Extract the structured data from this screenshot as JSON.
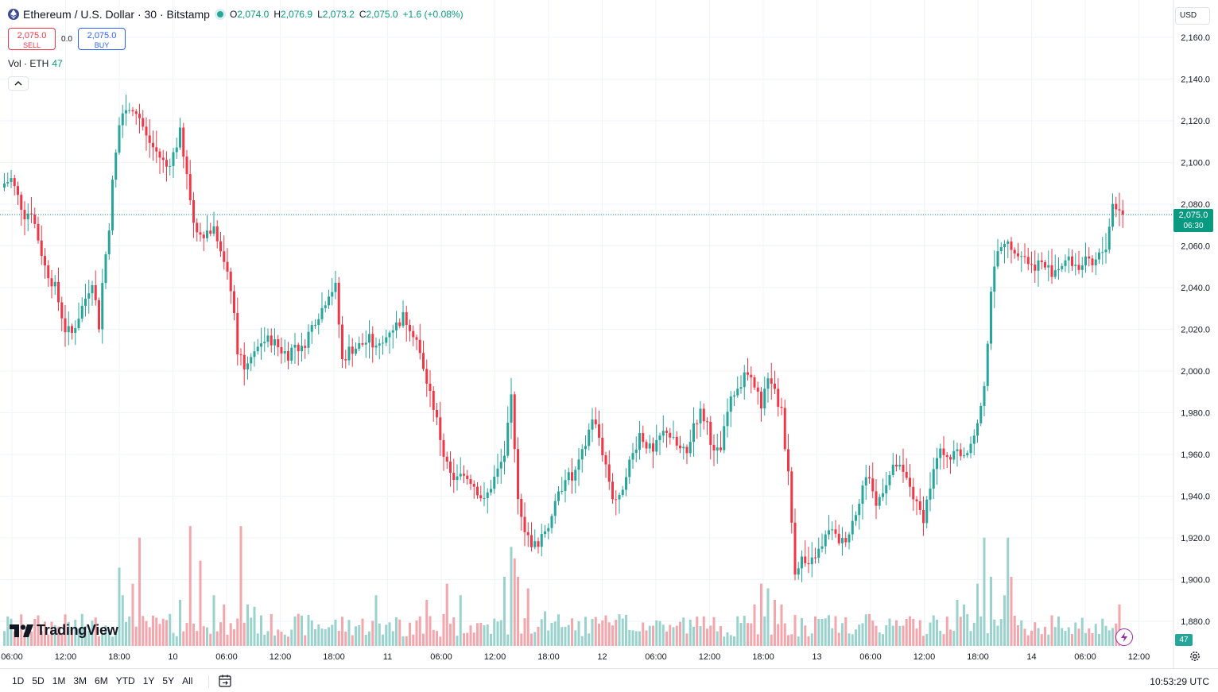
{
  "header": {
    "symbol_title": "Ethereum / U.S. Dollar · 30 · Bitstamp",
    "ohlc": {
      "o_label": "O",
      "o_value": "2,074.0",
      "h_label": "H",
      "h_value": "2,076.9",
      "l_label": "L",
      "l_value": "2,073.2",
      "c_label": "C",
      "c_value": "2,075.0",
      "change": "+1.6 (+0.08%)"
    }
  },
  "trade": {
    "sell_price": "2,075.0",
    "sell_label": "SELL",
    "spread": "0.0",
    "buy_price": "2,075.0",
    "buy_label": "BUY"
  },
  "volume_legend": {
    "label": "Vol · ETH",
    "value": "47"
  },
  "currency": "USD",
  "last_price": {
    "price": "2,075.0",
    "countdown": "06:30"
  },
  "volume_tag": "47",
  "logo": "TradingView",
  "bottom": {
    "ranges": [
      "1D",
      "5D",
      "1M",
      "3M",
      "6M",
      "YTD",
      "1Y",
      "5Y",
      "All"
    ],
    "clock": "10:53:29 UTC"
  },
  "icons": {
    "ethereum": "ethereum-logo-icon",
    "collapse": "chevron-up-icon",
    "flash": "lightning-icon",
    "settings": "gear-icon",
    "date_range": "calendar-range-icon"
  },
  "colors": {
    "up": "#26a69a",
    "down": "#f23645",
    "up_volume": "#9ad3cd",
    "down_volume": "#f3a6ab",
    "last_price": "#089981"
  },
  "chart_data": {
    "type": "candlestick",
    "title": "Ethereum / U.S. Dollar · 30 · Bitstamp",
    "interval": "30",
    "y_ticks": [
      1880,
      1900,
      1920,
      1940,
      1960,
      1980,
      2000,
      2020,
      2040,
      2060,
      2080,
      2100,
      2120,
      2140,
      2160
    ],
    "y_tick_labels": [
      "1,880.0",
      "1,900.0",
      "1,920.0",
      "1,940.0",
      "1,960.0",
      "1,980.0",
      "2,000.0",
      "2,020.0",
      "2,040.0",
      "2,060.0",
      "2,080.0",
      "2,100.0",
      "2,120.0",
      "2,140.0",
      "2,160.0"
    ],
    "x_tick_labels": [
      "06:00",
      "12:00",
      "18:00",
      "10",
      "06:00",
      "12:00",
      "18:00",
      "11",
      "06:00",
      "12:00",
      "18:00",
      "12",
      "06:00",
      "12:00",
      "18:00",
      "13",
      "06:00",
      "12:00",
      "18:00",
      "14",
      "06:00",
      "12:00"
    ],
    "last_price": 2075.0,
    "grid": true,
    "waypoints_price": [
      [
        0,
        2090
      ],
      [
        2,
        2092
      ],
      [
        6,
        2075
      ],
      [
        8,
        2077
      ],
      [
        12,
        2050
      ],
      [
        15,
        2040
      ],
      [
        18,
        2020
      ],
      [
        20,
        2018
      ],
      [
        24,
        2035
      ],
      [
        26,
        2044
      ],
      [
        28,
        2022
      ],
      [
        29,
        2042
      ],
      [
        31,
        2070
      ],
      [
        32,
        2090
      ],
      [
        34,
        2118
      ],
      [
        36,
        2126
      ],
      [
        38,
        2127
      ],
      [
        40,
        2122
      ],
      [
        42,
        2112
      ],
      [
        45,
        2105
      ],
      [
        48,
        2098
      ],
      [
        50,
        2104
      ],
      [
        52,
        2114
      ],
      [
        56,
        2072
      ],
      [
        58,
        2066
      ],
      [
        62,
        2068
      ],
      [
        65,
        2050
      ],
      [
        67,
        2040
      ],
      [
        69,
        2010
      ],
      [
        71,
        2003
      ],
      [
        74,
        2008
      ],
      [
        76,
        2014
      ],
      [
        79,
        2015
      ],
      [
        82,
        2010
      ],
      [
        84,
        2008
      ],
      [
        86,
        2013
      ],
      [
        88,
        2010
      ],
      [
        90,
        2018
      ],
      [
        92,
        2025
      ],
      [
        94,
        2030
      ],
      [
        96,
        2038
      ],
      [
        98,
        2040
      ],
      [
        100,
        2005
      ],
      [
        102,
        2010
      ],
      [
        105,
        2012
      ],
      [
        108,
        2015
      ],
      [
        110,
        2010
      ],
      [
        112,
        2013
      ],
      [
        114,
        2020
      ],
      [
        116,
        2022
      ],
      [
        118,
        2026
      ],
      [
        120,
        2022
      ],
      [
        122,
        2015
      ],
      [
        124,
        2000
      ],
      [
        126,
        1990
      ],
      [
        128,
        1976
      ],
      [
        130,
        1960
      ],
      [
        132,
        1950
      ],
      [
        134,
        1948
      ],
      [
        136,
        1950
      ],
      [
        138,
        1948
      ],
      [
        140,
        1943
      ],
      [
        142,
        1937
      ],
      [
        144,
        1945
      ],
      [
        146,
        1952
      ],
      [
        148,
        1960
      ],
      [
        150,
        1988
      ],
      [
        152,
        1940
      ],
      [
        154,
        1925
      ],
      [
        156,
        1918
      ],
      [
        158,
        1915
      ],
      [
        160,
        1924
      ],
      [
        162,
        1930
      ],
      [
        164,
        1940
      ],
      [
        166,
        1950
      ],
      [
        168,
        1948
      ],
      [
        170,
        1955
      ],
      [
        172,
        1965
      ],
      [
        174,
        1978
      ],
      [
        176,
        1968
      ],
      [
        178,
        1955
      ],
      [
        180,
        1940
      ],
      [
        182,
        1938
      ],
      [
        184,
        1952
      ],
      [
        186,
        1960
      ],
      [
        188,
        1970
      ],
      [
        190,
        1965
      ],
      [
        192,
        1960
      ],
      [
        194,
        1968
      ],
      [
        196,
        1972
      ],
      [
        198,
        1966
      ],
      [
        200,
        1962
      ],
      [
        202,
        1960
      ],
      [
        204,
        1975
      ],
      [
        206,
        1980
      ],
      [
        208,
        1975
      ],
      [
        210,
        1960
      ],
      [
        212,
        1962
      ],
      [
        214,
        1980
      ],
      [
        216,
        1990
      ],
      [
        218,
        1995
      ],
      [
        220,
        1998
      ],
      [
        222,
        1990
      ],
      [
        224,
        1985
      ],
      [
        226,
        1995
      ],
      [
        228,
        1990
      ],
      [
        230,
        1980
      ],
      [
        232,
        1950
      ],
      [
        234,
        1905
      ],
      [
        236,
        1910
      ],
      [
        238,
        1905
      ],
      [
        240,
        1912
      ],
      [
        242,
        1915
      ],
      [
        244,
        1925
      ],
      [
        246,
        1920
      ],
      [
        248,
        1918
      ],
      [
        250,
        1923
      ],
      [
        252,
        1933
      ],
      [
        254,
        1945
      ],
      [
        256,
        1950
      ],
      [
        258,
        1935
      ],
      [
        260,
        1944
      ],
      [
        262,
        1950
      ],
      [
        264,
        1955
      ],
      [
        266,
        1950
      ],
      [
        268,
        1945
      ],
      [
        270,
        1935
      ],
      [
        272,
        1930
      ],
      [
        274,
        1945
      ],
      [
        276,
        1958
      ],
      [
        278,
        1962
      ],
      [
        280,
        1958
      ],
      [
        282,
        1962
      ],
      [
        284,
        1960
      ],
      [
        286,
        1965
      ],
      [
        288,
        1974
      ],
      [
        290,
        1990
      ],
      [
        292,
        2040
      ],
      [
        294,
        2055
      ],
      [
        296,
        2060
      ],
      [
        298,
        2060
      ],
      [
        300,
        2058
      ],
      [
        302,
        2055
      ],
      [
        304,
        2050
      ],
      [
        306,
        2052
      ],
      [
        308,
        2050
      ],
      [
        310,
        2048
      ],
      [
        312,
        2050
      ],
      [
        314,
        2053
      ],
      [
        316,
        2052
      ],
      [
        318,
        2050
      ],
      [
        320,
        2052
      ],
      [
        322,
        2050
      ],
      [
        324,
        2055
      ],
      [
        326,
        2060
      ],
      [
        328,
        2080
      ],
      [
        330,
        2078
      ],
      [
        331,
        2075
      ]
    ],
    "volume_spikes": [
      [
        34,
        34
      ],
      [
        35,
        22
      ],
      [
        38,
        27
      ],
      [
        40,
        47
      ],
      [
        52,
        20
      ],
      [
        55,
        52
      ],
      [
        58,
        37
      ],
      [
        62,
        22
      ],
      [
        65,
        18
      ],
      [
        70,
        52
      ],
      [
        72,
        18
      ],
      [
        74,
        17
      ],
      [
        110,
        22
      ],
      [
        125,
        20
      ],
      [
        131,
        27
      ],
      [
        135,
        22
      ],
      [
        148,
        30
      ],
      [
        150,
        43
      ],
      [
        151,
        38
      ],
      [
        152,
        30
      ],
      [
        155,
        25
      ],
      [
        160,
        15
      ],
      [
        162,
        10
      ],
      [
        218,
        10
      ],
      [
        222,
        18
      ],
      [
        224,
        27
      ],
      [
        226,
        25
      ],
      [
        228,
        20
      ],
      [
        230,
        18
      ],
      [
        282,
        20
      ],
      [
        284,
        18
      ],
      [
        288,
        27
      ],
      [
        290,
        47
      ],
      [
        292,
        30
      ],
      [
        296,
        22
      ],
      [
        297,
        47
      ],
      [
        298,
        30
      ],
      [
        330,
        18
      ]
    ]
  }
}
